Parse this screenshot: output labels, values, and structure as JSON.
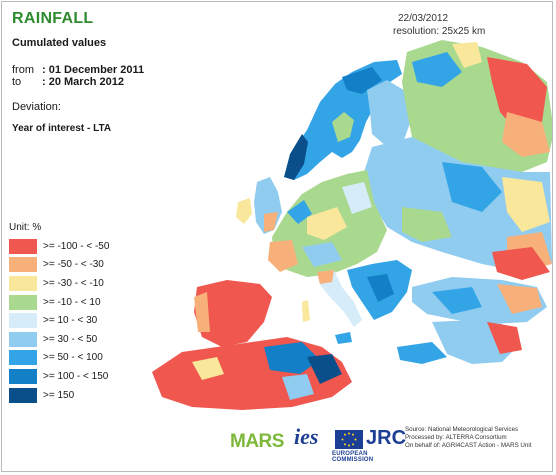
{
  "header": {
    "title": "RAINFALL",
    "subtitle": "Cumulated values",
    "from_label": "from",
    "from_value": ": 01 December 2011",
    "to_label": "to",
    "to_value": ": 20 March 2012",
    "deviation_label": "Deviation:",
    "year_of_interest": "Year of interest - LTA"
  },
  "meta": {
    "date": "22/03/2012",
    "resolution": "resolution: 25x25 km"
  },
  "legend": {
    "unit": "Unit: %",
    "classes": [
      {
        "label": ">= -100 - < -50",
        "color": "#f0574f"
      },
      {
        "label": ">= -50 - < -30",
        "color": "#f7b07a"
      },
      {
        "label": ">= -30 - < -10",
        "color": "#f9e79b"
      },
      {
        "label": ">= -10 - < 10",
        "color": "#a9d88f"
      },
      {
        "label": ">= 10 - < 30",
        "color": "#d6ecf8"
      },
      {
        "label": ">= 30 - < 50",
        "color": "#8fccf0"
      },
      {
        "label": ">= 50 - < 100",
        "color": "#33a5e6"
      },
      {
        "label": ">= 100 - < 150",
        "color": "#127fc7"
      },
      {
        "label": ">= 150",
        "color": "#0b4f8a"
      }
    ]
  },
  "footer": {
    "logos": {
      "mars": "MARS",
      "ies": "ies",
      "jrc": "JRC",
      "commission": "EUROPEAN COMMISSION"
    },
    "source_lines": [
      "Source: National Meteorological Services",
      "Processed by: ALTERRA Consortium",
      "On behalf of: AGRI4CAST Action - MARS Unit"
    ]
  }
}
